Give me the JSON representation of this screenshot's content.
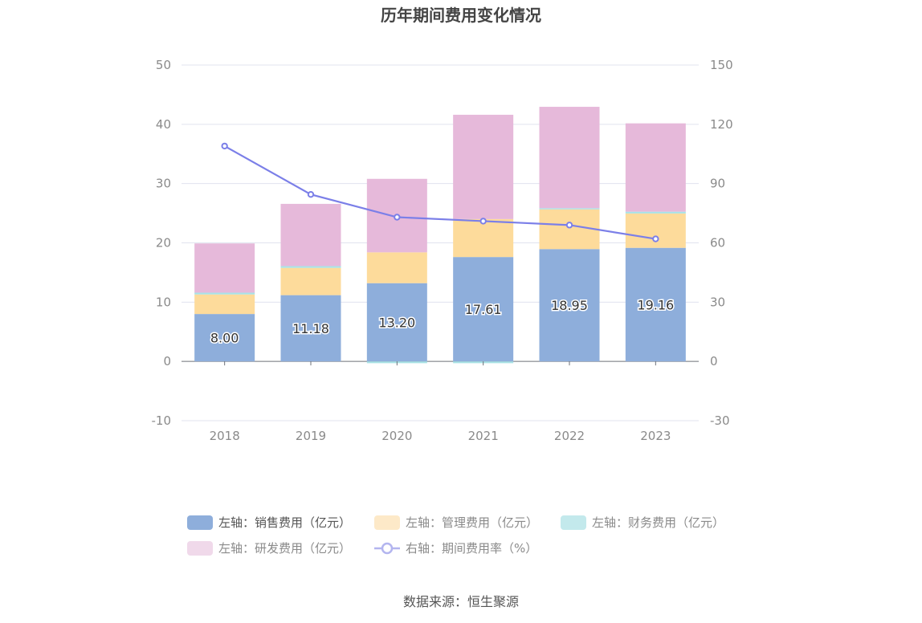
{
  "chart_data": {
    "type": "bar",
    "title": "历年期间费用变化情况",
    "categories": [
      "2018",
      "2019",
      "2020",
      "2021",
      "2022",
      "2023"
    ],
    "series": [
      {
        "name": "左轴：销售费用（亿元）",
        "axis": "left",
        "stack": true,
        "values": [
          8.0,
          11.18,
          13.2,
          17.61,
          18.95,
          19.16
        ],
        "show_labels": true,
        "color": "#8eaedb"
      },
      {
        "name": "左轴：管理费用（亿元）",
        "axis": "left",
        "stack": true,
        "values": [
          3.3,
          4.6,
          5.2,
          6.4,
          6.7,
          5.8
        ],
        "color": "#fddb9b"
      },
      {
        "name": "左轴：财务费用（亿元）",
        "axis": "left",
        "stack": true,
        "values": [
          0.3,
          0.3,
          -0.3,
          -0.3,
          0.2,
          0.3
        ],
        "color": "#a9e2e6"
      },
      {
        "name": "左轴：研发费用（亿元）",
        "axis": "left",
        "stack": true,
        "values": [
          8.3,
          10.5,
          12.4,
          17.6,
          17.1,
          14.9
        ],
        "color": "#e6b9da"
      },
      {
        "name": "右轴：期间费用率（%）",
        "axis": "right",
        "type": "line",
        "values": [
          109,
          84.5,
          73,
          71,
          69,
          62
        ],
        "color": "#7b7fe8"
      }
    ],
    "y_left": {
      "ticks": [
        "50",
        "40",
        "30",
        "20",
        "10",
        "0",
        "-10"
      ],
      "ylim": [
        -10,
        50
      ]
    },
    "y_right": {
      "ticks": [
        "150",
        "120",
        "90",
        "60",
        "30",
        "0",
        "-30"
      ],
      "ylim": [
        -30,
        150
      ]
    },
    "legend_position": "bottom",
    "grid": true
  },
  "footer": {
    "source": "数据来源：恒生聚源"
  }
}
